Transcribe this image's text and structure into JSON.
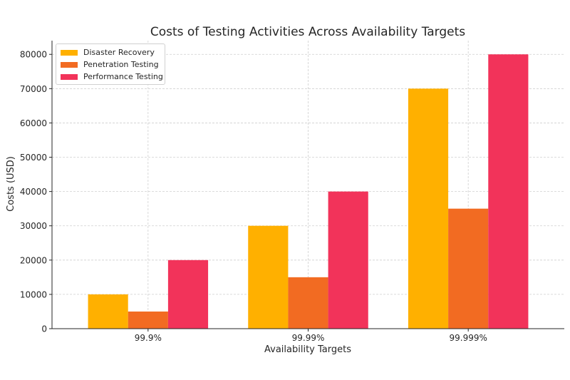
{
  "chart_data": {
    "type": "bar",
    "title": "Costs of Testing Activities Across Availability Targets",
    "xlabel": "Availability Targets",
    "ylabel": "Costs (USD)",
    "categories": [
      "99.9%",
      "99.99%",
      "99.999%"
    ],
    "ylim": [
      0,
      84000
    ],
    "yticks": [
      0,
      10000,
      20000,
      30000,
      40000,
      50000,
      60000,
      70000,
      80000
    ],
    "grid": true,
    "legend_position": "top-left",
    "series": [
      {
        "name": "Disaster Recovery",
        "color": "#FFB000",
        "values": [
          10000,
          30000,
          70000
        ]
      },
      {
        "name": "Penetration Testing",
        "color": "#F26B22",
        "values": [
          5000,
          15000,
          35000
        ]
      },
      {
        "name": "Performance Testing",
        "color": "#F2335A",
        "values": [
          20000,
          40000,
          80000
        ]
      }
    ]
  }
}
